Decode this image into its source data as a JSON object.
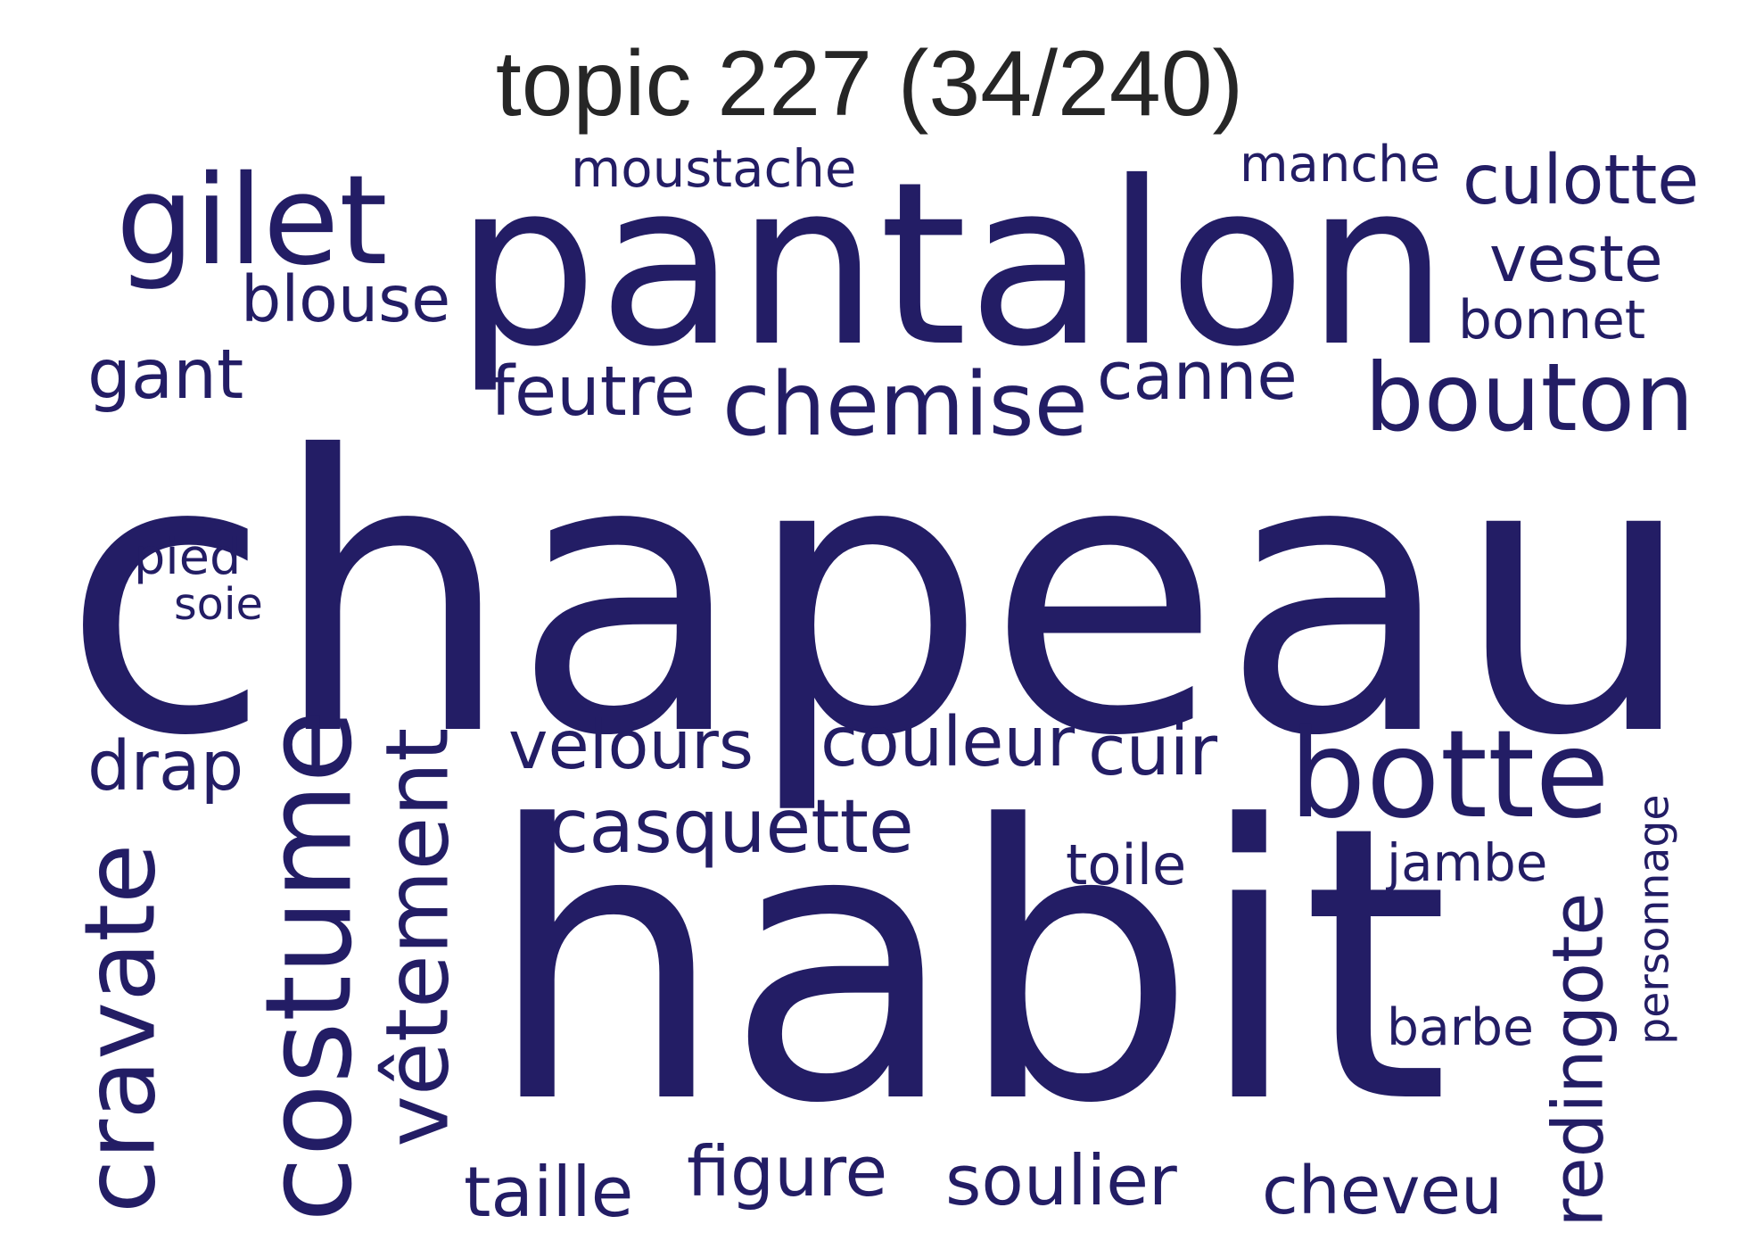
{
  "title": "topic 227 (34/240)",
  "color": "#231d65",
  "words": [
    "chapeau",
    "habit",
    "pantalon",
    "gilet",
    "botte",
    "bouton",
    "chemise",
    "costume",
    "cravate",
    "vêtement",
    "redingote",
    "velours",
    "couleur",
    "casquette",
    "culotte",
    "veste",
    "blouse",
    "gant",
    "feutre",
    "canne",
    "cheveu",
    "soulier",
    "figure",
    "taille",
    "drap",
    "cuir",
    "bonnet",
    "moustache",
    "manche",
    "barbe",
    "jambe",
    "toile",
    "pied",
    "soie",
    "personnage"
  ]
}
